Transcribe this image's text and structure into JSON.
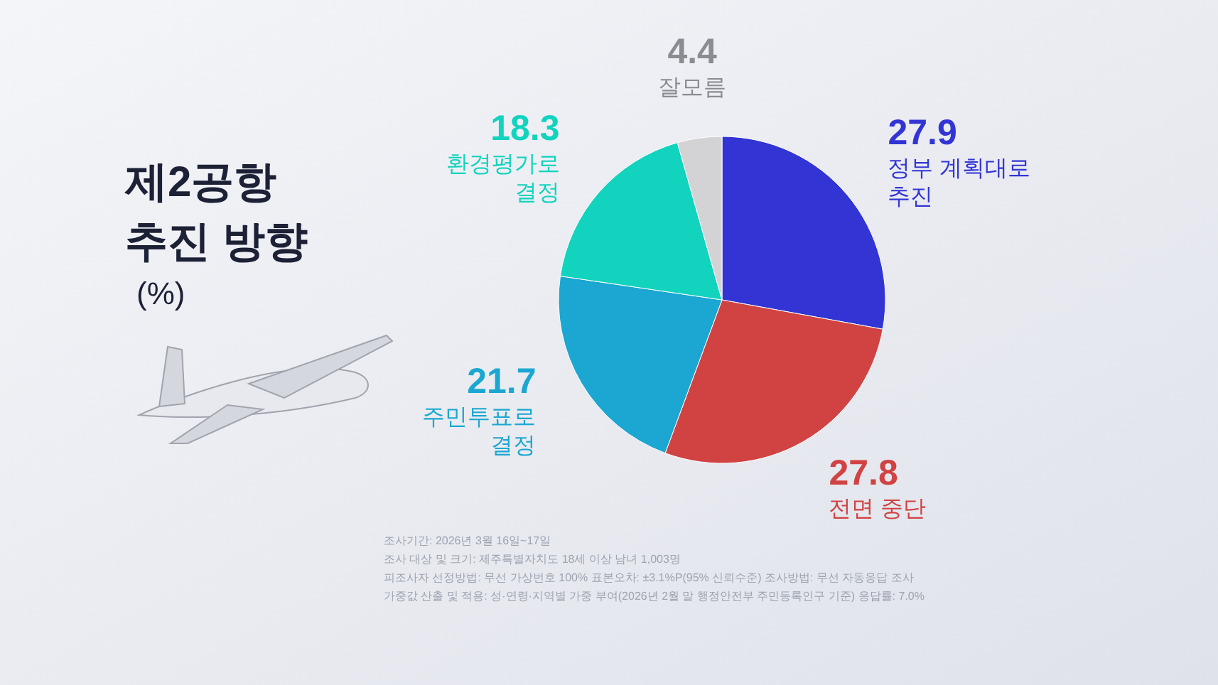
{
  "chart_data": {
    "type": "pie",
    "title": "제2공항 추진 방향",
    "subtitle": "(%)",
    "categories": [
      "정부 계획대로 추진",
      "전면 중단",
      "주민투표로 결정",
      "환경평가로 결정",
      "잘모름"
    ],
    "values": [
      27.9,
      27.8,
      21.7,
      18.3,
      4.4
    ],
    "colors": [
      "#3235d3",
      "#d14343",
      "#1ba7d1",
      "#12d3bd",
      "#d3d3d5"
    ],
    "data_labels": true,
    "annotations": [
      "조사기간: 2026년 3월 16일~17일",
      "조사 대상 및 크기: 제주특별자치도 18세 이상 남녀 1,003명",
      "피조사자 선정방법: 무선 가상번호 100%    표본오차: ±3.1%P(95% 신뢰수준)    조사방법: 무선 자동응답 조사",
      "가중값 산출 및 적용: 성·연령·지역별 가중 부여(2026년 2월 말 행정안전부 주민등록인구 기준)    응답률: 7.0%"
    ]
  }
}
